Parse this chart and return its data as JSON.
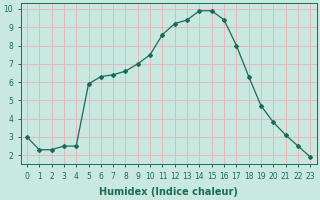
{
  "title": "",
  "xlabel": "Humidex (Indice chaleur)",
  "x": [
    0,
    1,
    2,
    3,
    4,
    5,
    6,
    7,
    8,
    9,
    10,
    11,
    12,
    13,
    14,
    15,
    16,
    17,
    18,
    19,
    20,
    21,
    22,
    23
  ],
  "y": [
    3.0,
    2.3,
    2.3,
    2.5,
    2.5,
    5.9,
    6.3,
    6.4,
    6.6,
    7.0,
    7.5,
    8.6,
    9.2,
    9.4,
    9.9,
    9.9,
    9.4,
    8.0,
    6.3,
    4.7,
    3.8,
    3.1,
    2.5,
    1.9
  ],
  "line_color": "#1a6b5a",
  "marker": "D",
  "markersize": 2.0,
  "bg_color": "#c8e8e0",
  "grid_color": "#e8b0b8",
  "ylim_min": 1.5,
  "ylim_max": 10.3,
  "xlim_min": -0.5,
  "xlim_max": 23.5,
  "yticks": [
    2,
    3,
    4,
    5,
    6,
    7,
    8,
    9,
    10
  ],
  "xticks": [
    0,
    1,
    2,
    3,
    4,
    5,
    6,
    7,
    8,
    9,
    10,
    11,
    12,
    13,
    14,
    15,
    16,
    17,
    18,
    19,
    20,
    21,
    22,
    23
  ],
  "tick_fontsize": 5.5,
  "xlabel_fontsize": 7.0,
  "spine_color": "#1a6b5a"
}
